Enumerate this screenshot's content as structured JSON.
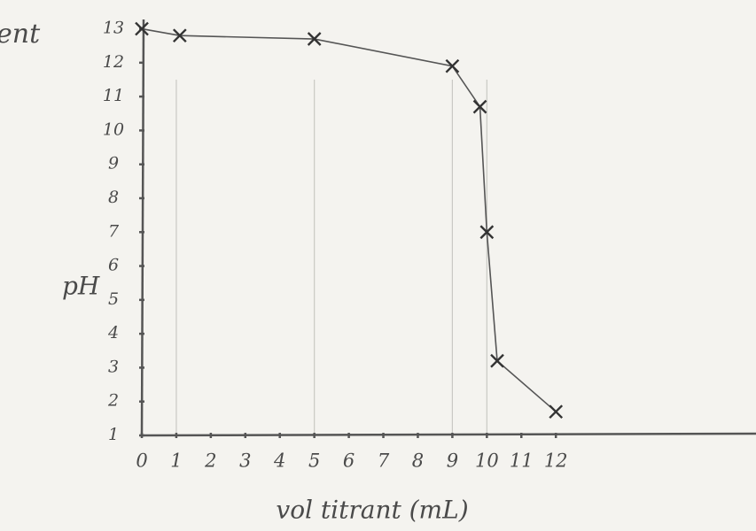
{
  "chart_data": {
    "type": "line",
    "title": "ent",
    "ylabel": "pH",
    "xlabel": "vol titrant (mL)",
    "x": [
      0,
      1.1,
      5,
      9,
      9.8,
      10,
      10.3,
      12
    ],
    "series": [
      {
        "values": [
          13,
          12.8,
          12.7,
          11.9,
          10.7,
          7,
          3.2,
          1.7
        ],
        "color": "#555555"
      }
    ],
    "xlim": [
      0,
      17.8
    ],
    "ylim": [
      1,
      13.85
    ],
    "xticks": [
      0,
      1,
      2,
      3,
      4,
      5,
      6,
      7,
      8,
      9,
      10,
      11,
      12
    ],
    "yticks": [
      1,
      2,
      3,
      4,
      5,
      6,
      7,
      8,
      9,
      10,
      11,
      12,
      13
    ],
    "grid_x": [
      1,
      5,
      9,
      10
    ]
  }
}
